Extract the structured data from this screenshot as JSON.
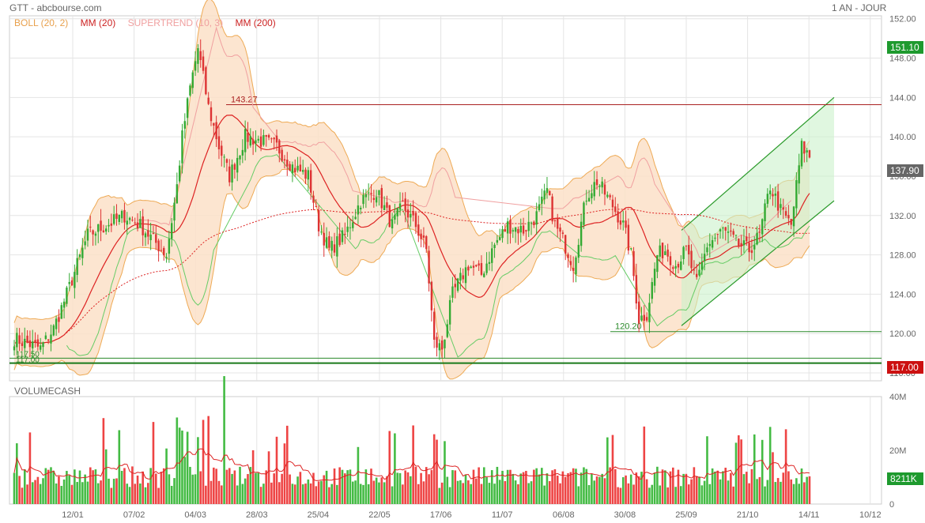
{
  "header": {
    "title": "GTT - abcbourse.com",
    "period": "1 AN - JOUR"
  },
  "legend": [
    {
      "label": "BOLL (20, 2)",
      "color": "#e8a04c"
    },
    {
      "label": "MM (20)",
      "color": "#cc2222"
    },
    {
      "label": "SUPERTREND (10, 3)",
      "color": "#f0a0a0"
    },
    {
      "label": "MM (200)",
      "color": "#cc2222"
    }
  ],
  "volume_label": "VOLUMECASH",
  "tags": {
    "last_price": "151.10",
    "current": "137.90",
    "support": "117.00",
    "volume": "8211K"
  },
  "annotations": {
    "resistance": "143.27",
    "support_mid": "120.20",
    "support_low_a": "117.50",
    "support_low_b": "117.00"
  },
  "colors": {
    "up": "#33aa33",
    "down": "#dd3333",
    "boll_fill": "#fbe0c8",
    "boll_line": "#eeaa55",
    "ma": "#dd2222",
    "supertrend": "#66cc66",
    "channel_fill": "#ccf2cc"
  },
  "chart_data": [
    {
      "type": "candlestick",
      "title": "GTT",
      "x_ticks": [
        "12/01",
        "07/02",
        "04/03",
        "28/03",
        "25/04",
        "22/05",
        "17/06",
        "11/07",
        "06/08",
        "30/08",
        "25/09",
        "21/10",
        "14/11",
        "10/12"
      ],
      "y_ticks": [
        "152.00",
        "148.00",
        "144.00",
        "140.00",
        "136.00",
        "132.00",
        "128.00",
        "124.00",
        "120.00",
        "116.00"
      ],
      "ylim": [
        115.2,
        152.3
      ],
      "close_anchors": [
        [
          0,
          119.5
        ],
        [
          10,
          118.5
        ],
        [
          15,
          120.5
        ],
        [
          20,
          124
        ],
        [
          28,
          130
        ],
        [
          35,
          131
        ],
        [
          42,
          132
        ],
        [
          48,
          131
        ],
        [
          53,
          129.5
        ],
        [
          58,
          128
        ],
        [
          62,
          135
        ],
        [
          64,
          140
        ],
        [
          67,
          145
        ],
        [
          70,
          149
        ],
        [
          74,
          143
        ],
        [
          78,
          139
        ],
        [
          82,
          136
        ],
        [
          88,
          140
        ],
        [
          95,
          139.5
        ],
        [
          100,
          139
        ],
        [
          106,
          137
        ],
        [
          112,
          136
        ],
        [
          116,
          131
        ],
        [
          120,
          128.5
        ],
        [
          126,
          130
        ],
        [
          132,
          133.5
        ],
        [
          138,
          134.5
        ],
        [
          144,
          131
        ],
        [
          148,
          133
        ],
        [
          153,
          131
        ],
        [
          157,
          128.5
        ],
        [
          160,
          119
        ],
        [
          163,
          118.5
        ],
        [
          167,
          124
        ],
        [
          173,
          127
        ],
        [
          178,
          126
        ],
        [
          183,
          129
        ],
        [
          188,
          131
        ],
        [
          194,
          130.5
        ],
        [
          199,
          132
        ],
        [
          203,
          134.5
        ],
        [
          206,
          131
        ],
        [
          209,
          129.5
        ],
        [
          213,
          127
        ],
        [
          218,
          134
        ],
        [
          222,
          135.5
        ],
        [
          228,
          133
        ],
        [
          232,
          131
        ],
        [
          235,
          128
        ],
        [
          238,
          121.5
        ],
        [
          241,
          122
        ],
        [
          245,
          128
        ],
        [
          248,
          128.5
        ],
        [
          252,
          127
        ],
        [
          256,
          128.5
        ],
        [
          260,
          125
        ],
        [
          264,
          129
        ],
        [
          270,
          130.5
        ],
        [
          276,
          129
        ],
        [
          280,
          128.5
        ],
        [
          284,
          130
        ],
        [
          288,
          135
        ],
        [
          292,
          132.5
        ],
        [
          296,
          131
        ],
        [
          300,
          139
        ],
        [
          303,
          138
        ]
      ],
      "volume_ylim": [
        0,
        40
      ],
      "volume_ticks": [
        "40M",
        "20M",
        "0"
      ]
    }
  ]
}
